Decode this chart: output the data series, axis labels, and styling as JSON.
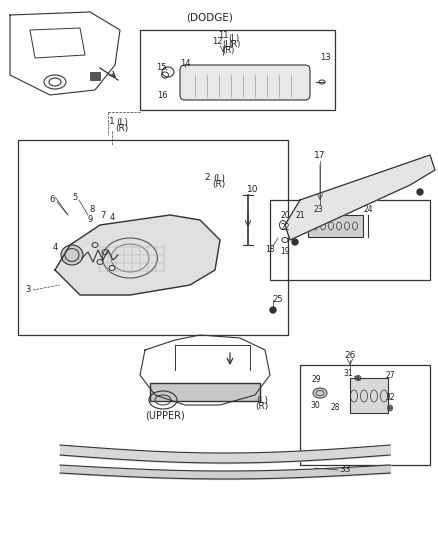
{
  "title": "",
  "background_color": "#ffffff",
  "line_color": "#333333",
  "text_color": "#222222",
  "fig_width": 4.38,
  "fig_height": 5.33,
  "dpi": 100,
  "dodge_label": "(DODGE)",
  "upper_label": "(UPPER)",
  "lr_label": "(L)\n(R)"
}
